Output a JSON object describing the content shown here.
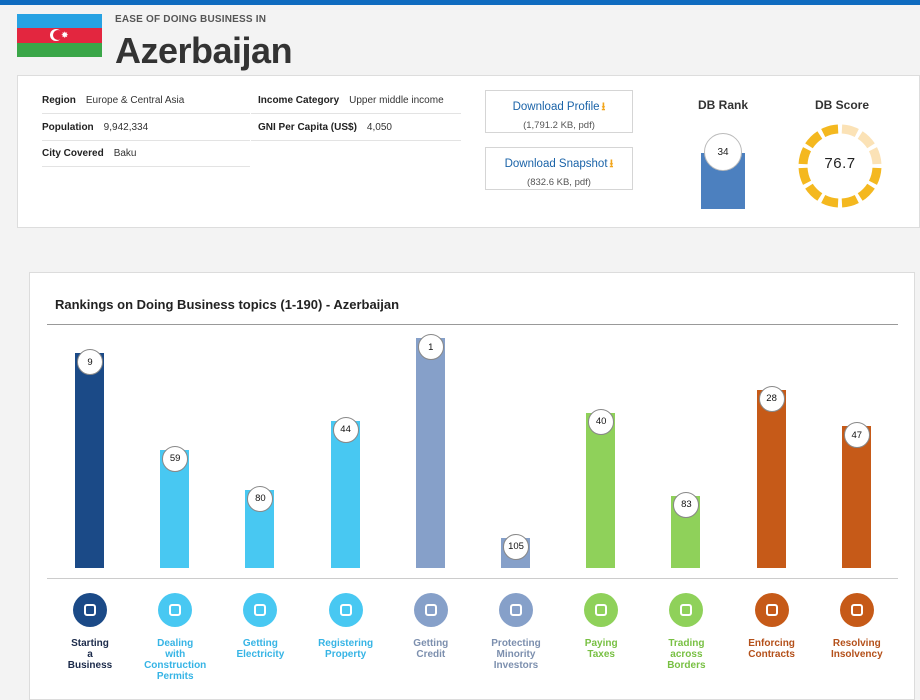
{
  "header": {
    "eyebrow": "EASE OF DOING BUSINESS IN",
    "country": "Azerbaijan"
  },
  "info": {
    "region": {
      "label": "Region",
      "value": "Europe & Central Asia"
    },
    "population": {
      "label": "Population",
      "value": "9,942,334"
    },
    "city": {
      "label": "City Covered",
      "value": "Baku"
    },
    "income": {
      "label": "Income Category",
      "value": "Upper middle income"
    },
    "gni": {
      "label": "GNI Per Capita (US$)",
      "value": "4,050"
    }
  },
  "downloads": {
    "profile": {
      "label": "Download Profile",
      "size": "(1,791.2 KB, pdf)"
    },
    "snapshot": {
      "label": "Download Snapshot",
      "size": "(832.6 KB, pdf)"
    }
  },
  "metrics": {
    "rank_title": "DB Rank",
    "rank_value": "34",
    "score_title": "DB Score",
    "score_value": "76.7",
    "score_fraction": 0.767
  },
  "chart_data": {
    "type": "bar",
    "title": "Rankings on Doing Business topics (1-190) - Azerbaijan",
    "ylim": [
      190,
      1
    ],
    "categories": [
      "Starting a Business",
      "Dealing with Construction Permits",
      "Getting Electricity",
      "Registering Property",
      "Getting Credit",
      "Protecting Minority Investors",
      "Paying Taxes",
      "Trading across Borders",
      "Enforcing Contracts",
      "Resolving Insolvency"
    ],
    "values": [
      9,
      59,
      80,
      44,
      1,
      105,
      40,
      83,
      28,
      47
    ],
    "label_lines": [
      [
        "Starting",
        "a",
        "Business"
      ],
      [
        "Dealing",
        "with",
        "Construction",
        "Permits"
      ],
      [
        "Getting",
        "Electricity"
      ],
      [
        "Registering",
        "Property"
      ],
      [
        "Getting",
        "Credit"
      ],
      [
        "Protecting",
        "Minority",
        "Investors"
      ],
      [
        "Paying",
        "Taxes"
      ],
      [
        "Trading",
        "across",
        "Borders"
      ],
      [
        "Enforcing",
        "Contracts"
      ],
      [
        "Resolving",
        "Insolvency"
      ]
    ],
    "colors": [
      "#1b4a87",
      "#48c8f2",
      "#48c8f2",
      "#48c8f2",
      "#86a0c9",
      "#86a0c9",
      "#8fd15a",
      "#8fd15a",
      "#c65a18",
      "#c65a18"
    ],
    "label_colors": [
      "#1b2a4a",
      "#36b4e5",
      "#36b4e5",
      "#36b4e5",
      "#7c8fae",
      "#7c8fae",
      "#78c043",
      "#78c043",
      "#b4501a",
      "#b4501a"
    ],
    "icons": [
      "building-icon",
      "tools-icon",
      "lightning-icon",
      "city-icon",
      "credit-icon",
      "growth-chart-icon",
      "money-icon",
      "truck-icon",
      "courthouse-icon",
      "gavel-icon"
    ]
  }
}
